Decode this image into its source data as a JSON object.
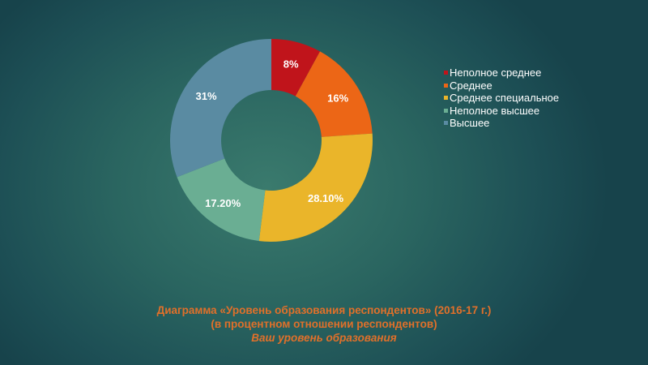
{
  "chart_data": {
    "type": "pie",
    "variant": "donut",
    "title": "Диаграмма «Уровень образования респондентов» (2016-17 г.)",
    "subtitle": "(в процентном отношении респондентов)",
    "caption": "Ваш уровень образования",
    "categories": [
      "Неполное среднее",
      "Среднее",
      "Среднее специальное",
      "Неполное высшее",
      "Высшее"
    ],
    "values": [
      8,
      16,
      28.1,
      17.2,
      31
    ],
    "labels": [
      "8%",
      "16%",
      "28.10%",
      "17.20%",
      "31%"
    ],
    "colors": [
      "#c0141b",
      "#ec6616",
      "#eab52a",
      "#6aae93",
      "#5a8ba2"
    ],
    "legend_position": "right",
    "start_angle_deg": 0,
    "direction": "clockwise"
  },
  "legend": {
    "items": [
      {
        "label": "Неполное среднее",
        "color": "#c0141b"
      },
      {
        "label": "Среднее",
        "color": "#ec6616"
      },
      {
        "label": "Среднее специальное",
        "color": "#eab52a"
      },
      {
        "label": "Неполное высшее",
        "color": "#6aae93"
      },
      {
        "label": "Высшее",
        "color": "#5a8ba2"
      }
    ]
  },
  "caption": {
    "line1": "Диаграмма «Уровень образования респондентов» (2016-17 г.)",
    "line2": "(в процентном отношении респондентов)",
    "line3": "Ваш уровень образования",
    "color": "#e0702a"
  }
}
